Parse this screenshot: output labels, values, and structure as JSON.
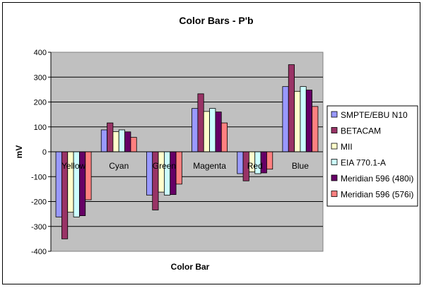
{
  "chart_data": {
    "type": "bar",
    "title": "Color Bars - P'b",
    "xlabel": "Color Bar",
    "ylabel": "mV",
    "ylim": [
      -400,
      400
    ],
    "yticks": [
      400,
      300,
      200,
      100,
      0,
      -100,
      -200,
      -300,
      -400
    ],
    "grid": true,
    "legend_position": "right",
    "plot_background": "#c0c0c0",
    "categories": [
      "Yellow",
      "Cyan",
      "Green",
      "Magenta",
      "Red",
      "Blue"
    ],
    "series": [
      {
        "name": "SMPTE/EBU N10",
        "color": "#9999ff",
        "values": [
          -262,
          88,
          -174,
          174,
          -88,
          262
        ]
      },
      {
        "name": "BETACAM",
        "color": "#993366",
        "values": [
          -350,
          116,
          -234,
          233,
          -117,
          350
        ]
      },
      {
        "name": "MII",
        "color": "#ffffcc",
        "values": [
          -243,
          81,
          -162,
          162,
          -81,
          243
        ]
      },
      {
        "name": "EIA 770.1-A",
        "color": "#ccffff",
        "values": [
          -262,
          88,
          -174,
          174,
          -88,
          262
        ]
      },
      {
        "name": "Meridian 596 (480i)",
        "color": "#660066",
        "values": [
          -257,
          80,
          -172,
          160,
          -85,
          248
        ]
      },
      {
        "name": "Meridian 596 (576i)",
        "color": "#ff8080",
        "values": [
          -193,
          58,
          -130,
          116,
          -70,
          182
        ]
      }
    ]
  }
}
